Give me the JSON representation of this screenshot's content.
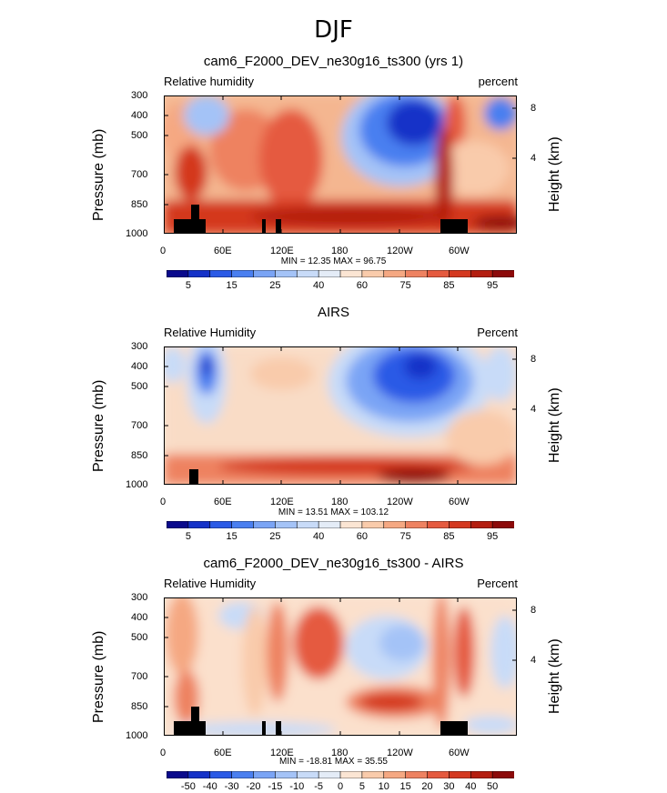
{
  "figure_title": "DJF",
  "chart_data": [
    {
      "type": "heatmap",
      "title": "cam6_F2000_DEV_ne30g16_ts300 (yrs 1)",
      "left_label": "Relative humidity",
      "right_label": "percent",
      "ylabel": "Pressure (mb)",
      "ylabel_right": "Height (km)",
      "x_ticks": [
        "0",
        "60E",
        "120E",
        "180",
        "120W",
        "60W"
      ],
      "y_ticks": [
        "300",
        "400",
        "500",
        "700",
        "850",
        "1000"
      ],
      "y_ticks_right": [
        "8",
        "4"
      ],
      "min": "12.35",
      "max": "96.75",
      "colorbar_labels": [
        "5",
        "15",
        "25",
        "40",
        "60",
        "75",
        "85",
        "95"
      ],
      "colorbar_colors": [
        "#0a0a8c",
        "#1532c8",
        "#2a5ae6",
        "#4a7ff0",
        "#7aa4f5",
        "#a4c3f7",
        "#c8dbf8",
        "#e4ecf7",
        "#fbe5d3",
        "#f9cbab",
        "#f5a882",
        "#ee8261",
        "#e55a3f",
        "#d4381f",
        "#b41e10",
        "#8c0a0a"
      ],
      "caption": "MIN =   12.35   MAX =   96.75"
    },
    {
      "type": "heatmap",
      "title": "AIRS",
      "left_label": "Relative Humidity",
      "right_label": "Percent",
      "ylabel": "Pressure (mb)",
      "ylabel_right": "Height (km)",
      "x_ticks": [
        "0",
        "60E",
        "120E",
        "180",
        "120W",
        "60W"
      ],
      "y_ticks": [
        "300",
        "400",
        "500",
        "700",
        "850",
        "1000"
      ],
      "y_ticks_right": [
        "8",
        "4"
      ],
      "min": "13.51",
      "max": "103.12",
      "colorbar_labels": [
        "5",
        "15",
        "25",
        "40",
        "60",
        "75",
        "85",
        "95"
      ],
      "colorbar_colors": [
        "#0a0a8c",
        "#1532c8",
        "#2a5ae6",
        "#4a7ff0",
        "#7aa4f5",
        "#a4c3f7",
        "#c8dbf8",
        "#e4ecf7",
        "#fbe5d3",
        "#f9cbab",
        "#f5a882",
        "#ee8261",
        "#e55a3f",
        "#d4381f",
        "#b41e10",
        "#8c0a0a"
      ],
      "caption": "MIN =   13.51   MAX =  103.12"
    },
    {
      "type": "heatmap",
      "title": "cam6_F2000_DEV_ne30g16_ts300 - AIRS",
      "left_label": "Relative Humidity",
      "right_label": "Percent",
      "ylabel": "Pressure (mb)",
      "ylabel_right": "Height (km)",
      "x_ticks": [
        "0",
        "60E",
        "120E",
        "180",
        "120W",
        "60W"
      ],
      "y_ticks": [
        "300",
        "400",
        "500",
        "700",
        "850",
        "1000"
      ],
      "y_ticks_right": [
        "8",
        "4"
      ],
      "min": "-18.81",
      "max": "35.55",
      "colorbar_labels": [
        "-50",
        "-40",
        "-30",
        "-20",
        "-15",
        "-10",
        "-5",
        "0",
        "5",
        "10",
        "15",
        "20",
        "30",
        "40",
        "50"
      ],
      "colorbar_colors": [
        "#0a0a8c",
        "#1532c8",
        "#2a5ae6",
        "#4a7ff0",
        "#7aa4f5",
        "#a4c3f7",
        "#c8dbf8",
        "#e4ecf7",
        "#fbe5d3",
        "#f9cbab",
        "#f5a882",
        "#ee8261",
        "#e55a3f",
        "#d4381f",
        "#b41e10",
        "#8c0a0a"
      ],
      "caption": "MIN =  -18.81   MAX =   35.55"
    }
  ]
}
